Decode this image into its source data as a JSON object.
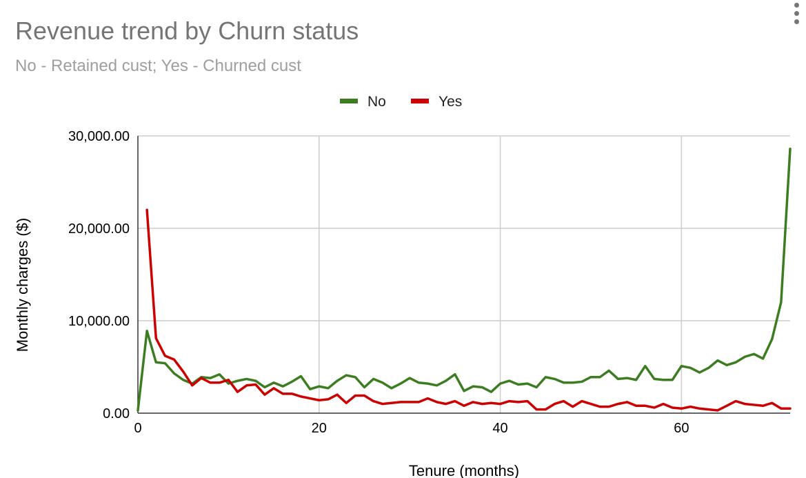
{
  "chart_data": {
    "type": "line",
    "title": "Revenue trend by Churn status",
    "subtitle": "No - Retained cust; Yes - Churned cust",
    "xlabel": "Tenure (months)",
    "ylabel": "Monthly charges ($)",
    "xlim": [
      0,
      72
    ],
    "ylim": [
      0,
      30000
    ],
    "x_ticks": [
      0,
      20,
      40,
      60
    ],
    "x_tick_labels": [
      "0",
      "20",
      "40",
      "60"
    ],
    "y_ticks": [
      0,
      10000,
      20000,
      30000
    ],
    "y_tick_labels": [
      "0.00",
      "10,000.00",
      "20,000.00",
      "30,000.00"
    ],
    "grid": true,
    "legend_position": "top",
    "series": [
      {
        "name": "No",
        "color": "#3c7d22",
        "x": [
          0,
          1,
          2,
          3,
          4,
          5,
          6,
          7,
          8,
          9,
          10,
          11,
          12,
          13,
          14,
          15,
          16,
          17,
          18,
          19,
          20,
          21,
          22,
          23,
          24,
          25,
          26,
          27,
          28,
          29,
          30,
          31,
          32,
          33,
          34,
          35,
          36,
          37,
          38,
          39,
          40,
          41,
          42,
          43,
          44,
          45,
          46,
          47,
          48,
          49,
          50,
          51,
          52,
          53,
          54,
          55,
          56,
          57,
          58,
          59,
          60,
          61,
          62,
          63,
          64,
          65,
          66,
          67,
          68,
          69,
          70,
          71,
          72
        ],
        "values": [
          300,
          8900,
          5500,
          5400,
          4300,
          3600,
          3200,
          3900,
          3800,
          4200,
          3200,
          3500,
          3700,
          3500,
          2800,
          3300,
          2900,
          3400,
          4000,
          2600,
          2900,
          2700,
          3500,
          4100,
          3900,
          2800,
          3700,
          3300,
          2700,
          3200,
          3800,
          3300,
          3200,
          3000,
          3500,
          4200,
          2400,
          2900,
          2800,
          2300,
          3200,
          3500,
          3100,
          3200,
          2800,
          3900,
          3700,
          3300,
          3300,
          3400,
          3900,
          3900,
          4600,
          3700,
          3800,
          3600,
          5100,
          3700,
          3600,
          3600,
          5100,
          4900,
          4400,
          4900,
          5700,
          5200,
          5500,
          6100,
          6400,
          5900,
          8000,
          12000,
          28600
        ]
      },
      {
        "name": "Yes",
        "color": "#cc0000",
        "x": [
          1,
          2,
          3,
          4,
          5,
          6,
          7,
          8,
          9,
          10,
          11,
          12,
          13,
          14,
          15,
          16,
          17,
          18,
          19,
          20,
          21,
          22,
          23,
          24,
          25,
          26,
          27,
          28,
          29,
          30,
          31,
          32,
          33,
          34,
          35,
          36,
          37,
          38,
          39,
          40,
          41,
          42,
          43,
          44,
          45,
          46,
          47,
          48,
          49,
          50,
          51,
          52,
          53,
          54,
          55,
          56,
          57,
          58,
          59,
          60,
          61,
          62,
          63,
          64,
          65,
          66,
          67,
          68,
          69,
          70,
          71,
          72
        ],
        "values": [
          22000,
          8100,
          6200,
          5800,
          4500,
          3000,
          3800,
          3300,
          3300,
          3600,
          2300,
          3000,
          3100,
          2000,
          2700,
          2100,
          2100,
          1800,
          1600,
          1400,
          1500,
          2000,
          1100,
          1900,
          1900,
          1300,
          1000,
          1100,
          1200,
          1200,
          1200,
          1600,
          1200,
          1000,
          1300,
          800,
          1200,
          1000,
          1100,
          1000,
          1300,
          1200,
          1300,
          400,
          400,
          1000,
          1300,
          700,
          1300,
          1000,
          700,
          700,
          1000,
          1200,
          800,
          800,
          600,
          1000,
          600,
          500,
          700,
          500,
          400,
          300,
          800,
          1300,
          1000,
          900,
          800,
          1100,
          500,
          500
        ]
      }
    ]
  }
}
